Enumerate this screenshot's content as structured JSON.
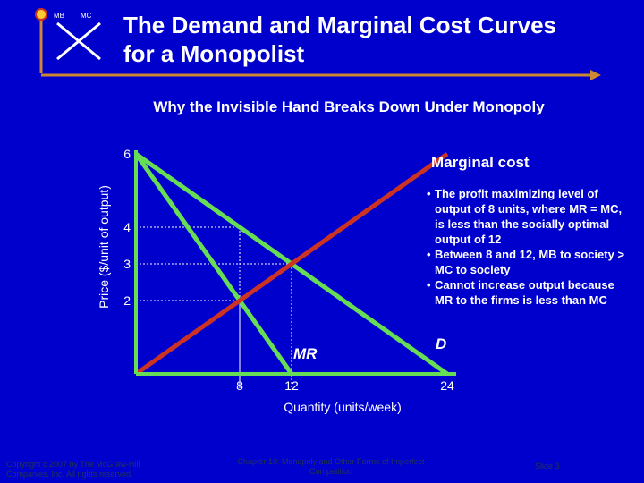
{
  "title": "The Demand and Marginal Cost Curves\nfor a Monopolist",
  "subtitle": "Why the Invisible Hand Breaks Down Under Monopoly",
  "logo": {
    "left_letters": "MB",
    "right_letters": "MC"
  },
  "colors": {
    "background": "#0000cc",
    "demand_and_mr": "#66dd55",
    "marginal_cost": "#cc3322",
    "axis": "#66dd55",
    "text": "#ffffff"
  },
  "chart_data": {
    "type": "line",
    "xlabel": "Quantity (units/week)",
    "ylabel": "Price ($/unit of output)",
    "x_ticks": [
      "8",
      "12",
      "24"
    ],
    "y_ticks": [
      "6",
      "4",
      "3",
      "2"
    ],
    "xlim": [
      0,
      24
    ],
    "ylim": [
      0,
      6
    ],
    "series": [
      {
        "name": "D",
        "points": [
          [
            0,
            6
          ],
          [
            24,
            0
          ]
        ]
      },
      {
        "name": "MR",
        "points": [
          [
            0,
            6
          ],
          [
            12,
            0
          ]
        ]
      },
      {
        "name": "Marginal cost",
        "points": [
          [
            0,
            0
          ],
          [
            24,
            6
          ]
        ]
      }
    ],
    "reference_points": [
      {
        "x": 8,
        "y": 2
      },
      {
        "x": 8,
        "y": 4
      },
      {
        "x": 12,
        "y": 3
      }
    ],
    "grid": false
  },
  "bullets": [
    "The profit maximizing level of output of 8 units, where MR = MC, is less than the socially optimal output of 12",
    "Between 8 and 12, MB to society > MC to society",
    "Cannot increase output because MR to the firms is less than MC"
  ],
  "footer": {
    "copyright": "Copyright c 2007 by The McGraw-Hill Companies, Inc. All rights reserved.",
    "chapter": "Chapter 10: Monopoly and Other Forms of Imperfect Competition",
    "slide": "Slide 3"
  }
}
